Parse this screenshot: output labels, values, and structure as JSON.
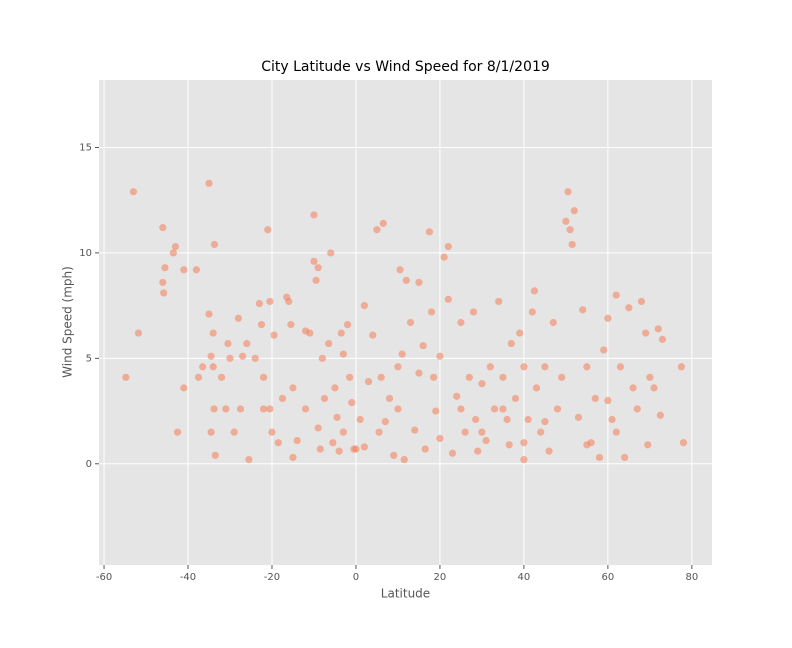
{
  "chart_data": {
    "type": "scatter",
    "title": "City Latitude vs Wind Speed for 8/1/2019",
    "x_label": "Latitude",
    "y_label": "Wind Speed (mph)",
    "color": "#f4845f",
    "grid": true,
    "xlim": [
      -61.2,
      84.8
    ],
    "ylim": [
      -4.8,
      18.2
    ],
    "xticks": [
      -60,
      -40,
      -20,
      0,
      20,
      40,
      60,
      80
    ],
    "yticks": [
      0,
      5,
      10,
      15
    ],
    "x": [
      -54.8,
      -53,
      -51.8,
      -46,
      -46,
      -45.8,
      -45.5,
      -43,
      -43.5,
      -42.5,
      -41,
      -41,
      -38,
      -37.5,
      -36.5,
      -35,
      -35,
      -34.5,
      -34,
      -33.7,
      -34,
      -33.8,
      -34.5,
      -33.5,
      -32,
      -31,
      -30.5,
      -30,
      -29,
      -28,
      -27.5,
      -27,
      -26,
      -25.5,
      -24,
      -23,
      -22.5,
      -22,
      -21,
      -20.5,
      -20.5,
      -20,
      -19.5,
      -18.5,
      -17.5,
      -16.5,
      -16,
      -15.5,
      -15,
      -15,
      -14,
      -12,
      -11,
      -10,
      -10,
      -9.5,
      -9,
      -9,
      -8.5,
      -8,
      -7.5,
      -6.5,
      -6,
      -5.5,
      -5,
      -4.5,
      -4,
      -3.5,
      -3,
      -2,
      -1.5,
      -1,
      -0.5,
      0,
      1,
      2,
      3,
      4,
      5,
      5.5,
      6,
      6.5,
      7,
      8,
      9,
      10,
      10.5,
      11,
      11.5,
      12,
      13,
      14,
      15,
      16,
      16.5,
      17.5,
      18,
      18.5,
      19,
      20,
      21,
      22,
      22,
      23,
      24,
      25,
      26,
      27,
      28,
      28.5,
      29,
      30,
      31,
      32,
      33,
      34,
      35,
      36,
      36.5,
      37,
      38,
      39,
      40,
      40,
      41,
      42,
      42.5,
      43,
      44,
      45,
      46,
      47,
      48,
      49,
      50,
      50.5,
      51,
      52,
      51.5,
      53,
      54,
      55,
      56,
      57,
      58,
      59,
      60,
      61,
      62,
      63,
      64,
      65,
      66,
      67,
      68,
      69,
      69.5,
      70,
      71,
      72,
      73,
      72.5,
      77.5,
      78,
      60,
      62,
      55,
      45,
      40,
      35,
      30,
      25,
      20,
      15,
      10,
      2,
      -3,
      -12,
      -22
    ],
    "values": [
      4.1,
      12.9,
      6.2,
      11.2,
      8.6,
      8.1,
      9.3,
      10.3,
      10,
      1.5,
      9.2,
      3.6,
      9.2,
      4.1,
      4.6,
      13.3,
      7.1,
      5.1,
      6.2,
      10.4,
      4.6,
      2.6,
      1.5,
      0.4,
      4.1,
      2.6,
      5.7,
      5,
      1.5,
      6.9,
      2.6,
      5.1,
      5.7,
      0.2,
      5,
      7.6,
      6.6,
      2.6,
      11.1,
      7.7,
      2.6,
      1.5,
      6.1,
      1,
      3.1,
      7.9,
      7.7,
      6.6,
      3.6,
      0.3,
      1.1,
      6.3,
      6.2,
      11.8,
      9.6,
      8.7,
      9.3,
      1.7,
      0.7,
      5,
      3.1,
      5.7,
      10,
      1,
      3.6,
      2.2,
      0.6,
      6.2,
      5.2,
      6.6,
      4.1,
      2.9,
      0.7,
      0.7,
      2.1,
      7.5,
      3.9,
      6.1,
      11.1,
      1.5,
      4.1,
      11.4,
      2,
      3.1,
      0.4,
      2.6,
      9.2,
      5.2,
      0.2,
      8.7,
      6.7,
      1.6,
      8.6,
      5.6,
      0.7,
      11,
      7.2,
      4.1,
      2.5,
      5.1,
      9.8,
      10.3,
      7.8,
      0.5,
      3.2,
      6.7,
      1.5,
      4.1,
      7.2,
      2.1,
      0.6,
      3.8,
      1.1,
      4.6,
      2.6,
      7.7,
      4.1,
      2.1,
      0.9,
      5.7,
      3.1,
      6.2,
      1,
      0.2,
      2.1,
      7.2,
      8.2,
      3.6,
      1.5,
      4.6,
      0.6,
      6.7,
      2.6,
      4.1,
      11.5,
      12.9,
      11.1,
      12,
      10.4,
      2.2,
      7.3,
      4.6,
      1,
      3.1,
      0.3,
      5.4,
      6.9,
      2.1,
      8,
      4.6,
      0.3,
      7.4,
      3.6,
      2.6,
      7.7,
      6.2,
      0.9,
      4.1,
      3.6,
      6.4,
      5.9,
      2.3,
      4.6,
      1,
      3,
      1.5,
      0.9,
      2,
      4.6,
      2.6,
      1.5,
      2.6,
      1.2,
      4.3,
      4.6,
      0.8,
      1.5,
      2.6,
      4.1
    ]
  }
}
